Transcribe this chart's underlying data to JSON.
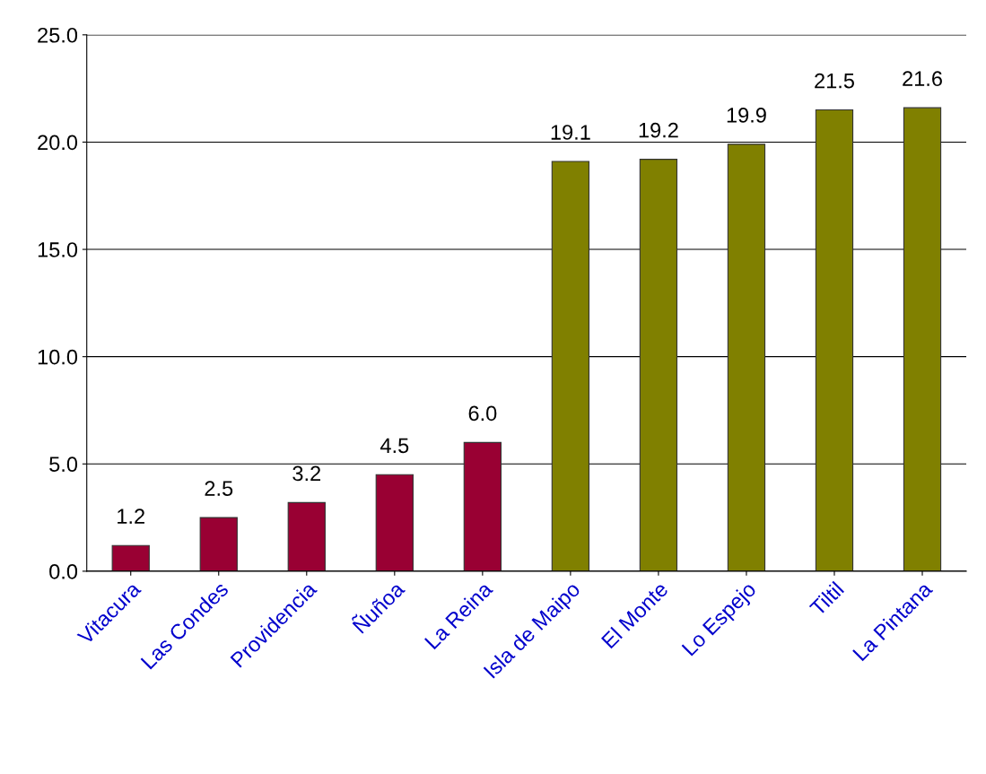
{
  "chart_data": {
    "type": "bar",
    "categories": [
      "Vitacura",
      "Las Condes",
      "Providencia",
      "Ñuñoa",
      "La Reina",
      "Isla de Maipo",
      "El Monte",
      "Lo Espejo",
      "Tiltil",
      "La Pintana"
    ],
    "values": [
      1.2,
      2.5,
      3.2,
      4.5,
      6.0,
      19.1,
      19.2,
      19.9,
      21.5,
      21.6
    ],
    "colors": [
      "#990033",
      "#990033",
      "#990033",
      "#990033",
      "#990033",
      "#808000",
      "#808000",
      "#808000",
      "#808000",
      "#808000"
    ],
    "value_labels": [
      "1.2",
      "2.5",
      "3.2",
      "4.5",
      "6.0",
      "19.1",
      "19.2",
      "19.9",
      "21.5",
      "21.6"
    ],
    "ylim": [
      0,
      25
    ],
    "yticks": [
      {
        "value": 0,
        "label": "0.0"
      },
      {
        "value": 5,
        "label": "5.0"
      },
      {
        "value": 10,
        "label": "10.0"
      },
      {
        "value": 15,
        "label": "15.0"
      },
      {
        "value": 20,
        "label": "20.0"
      },
      {
        "value": 25,
        "label": "25.0"
      }
    ],
    "grid": "y"
  }
}
